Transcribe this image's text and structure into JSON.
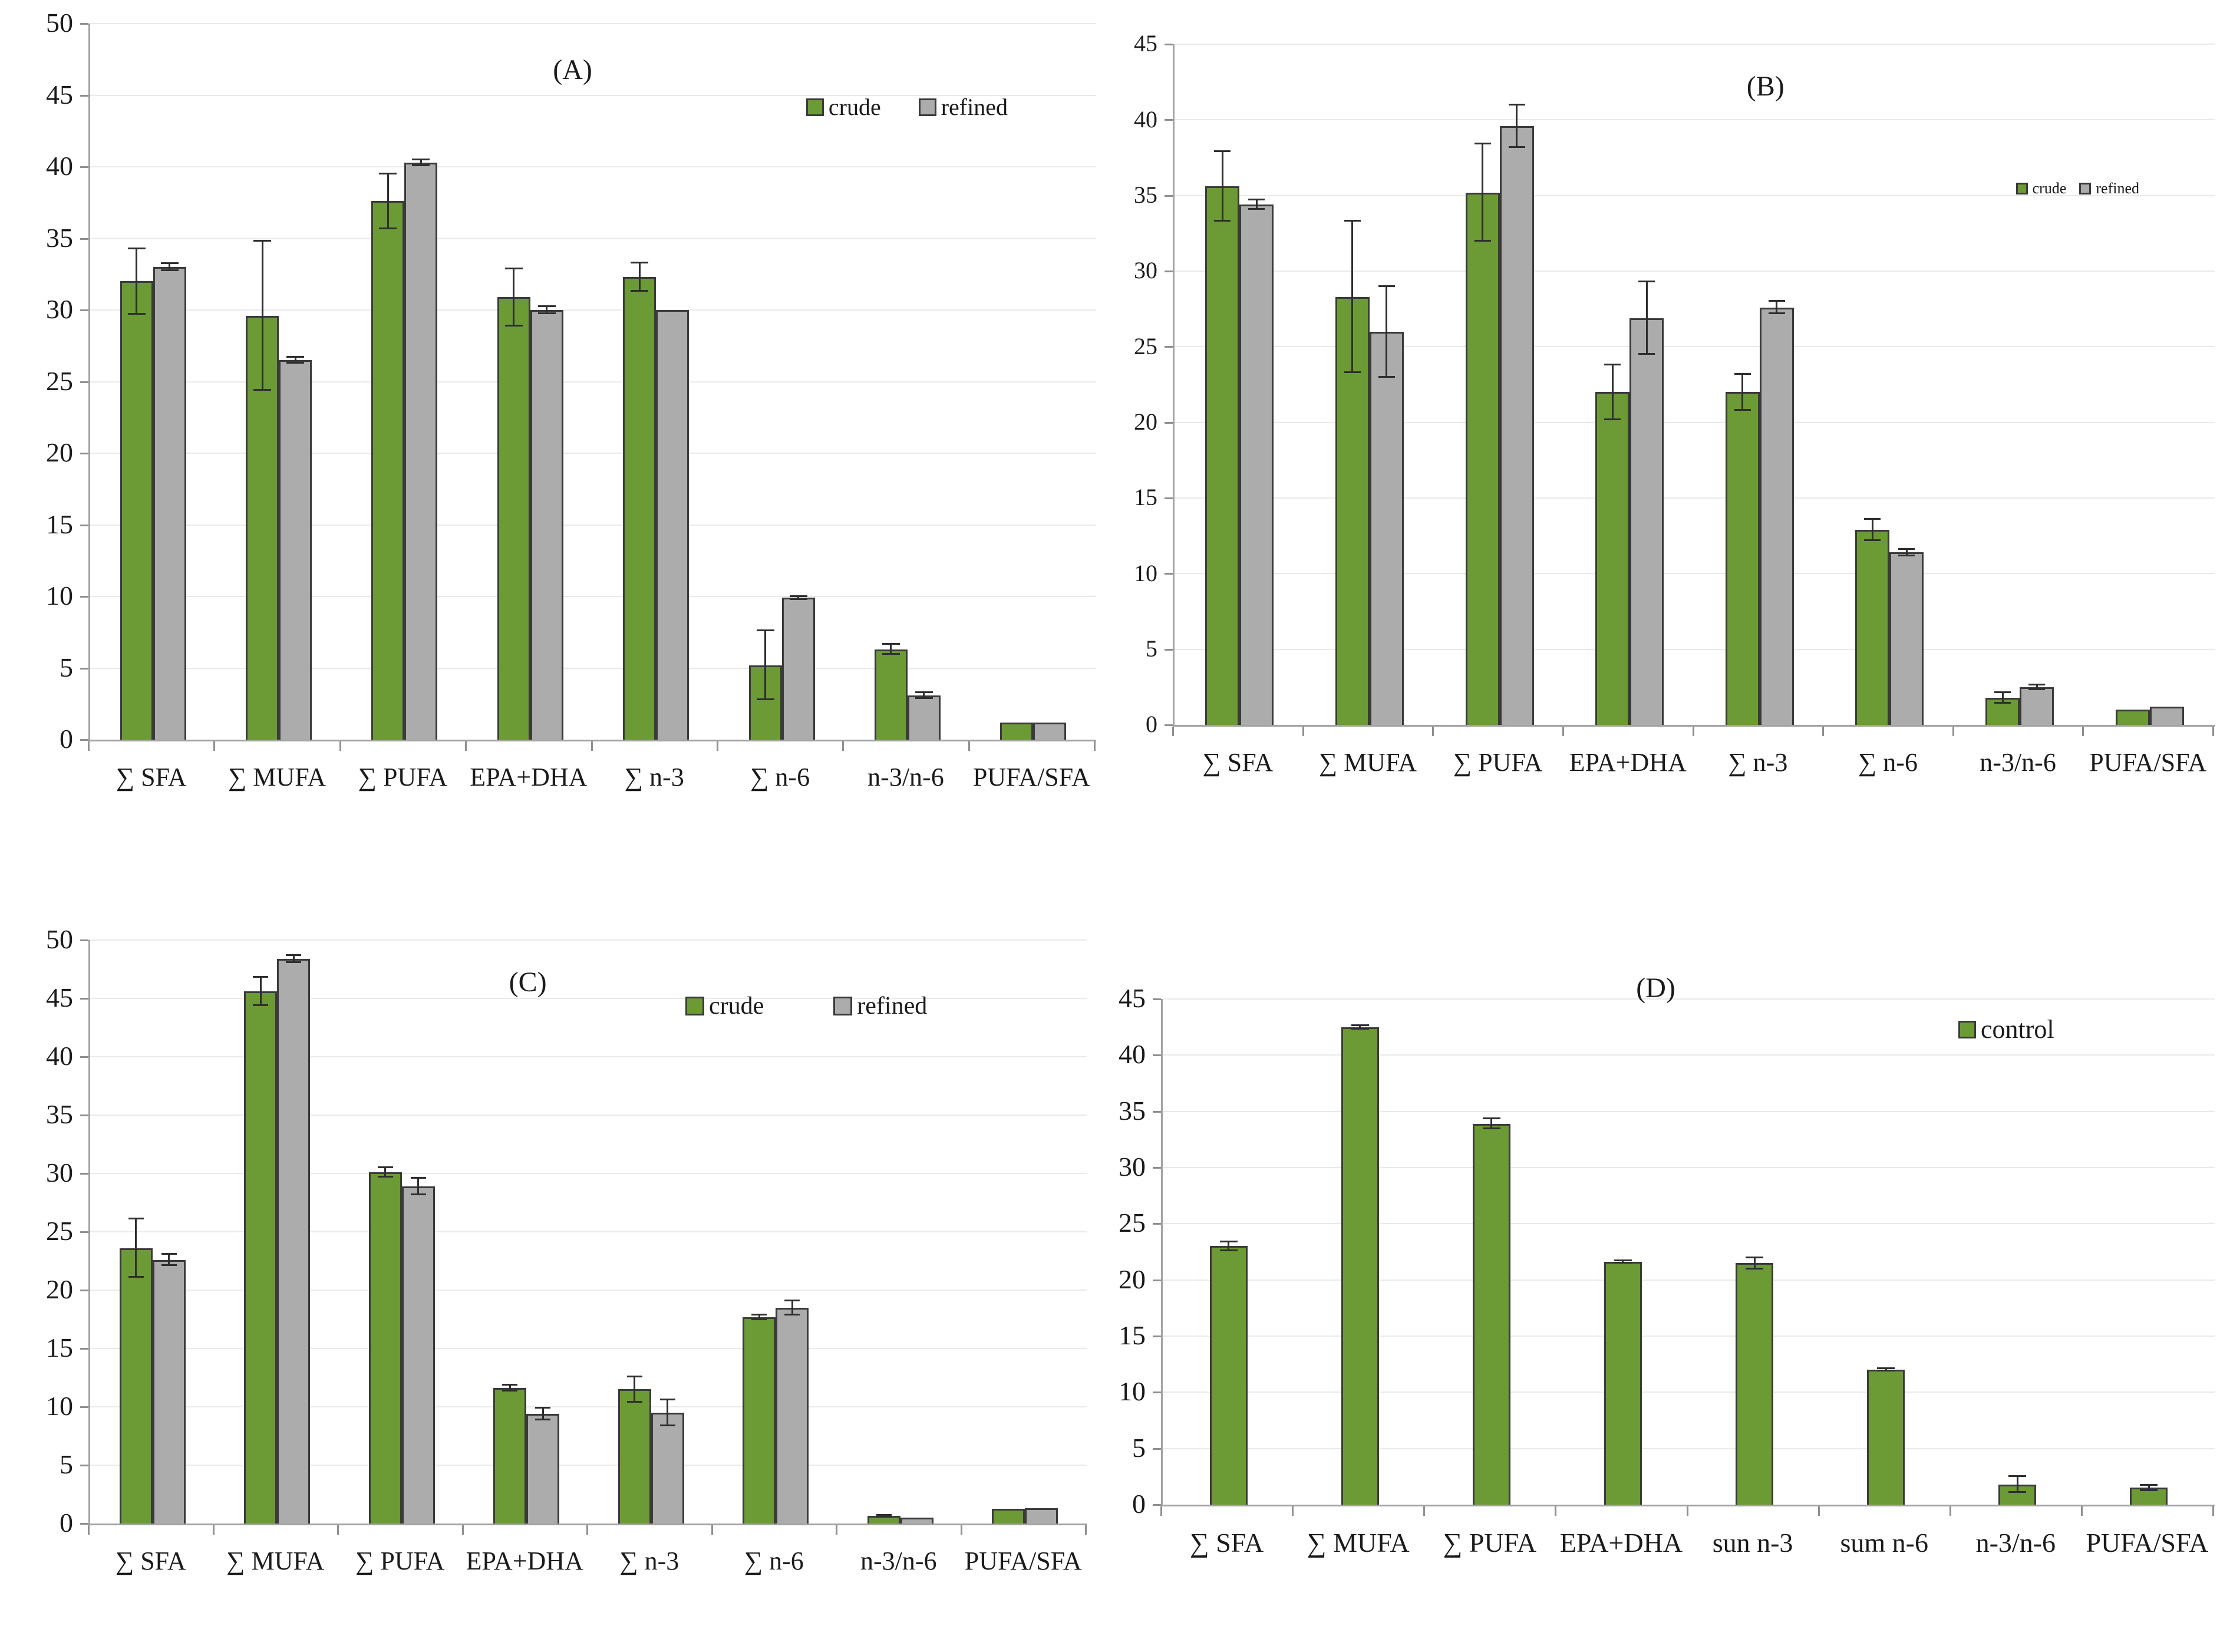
{
  "figure": {
    "background": "#ffffff",
    "series_colors": {
      "crude": "#6c9a34",
      "refined": "#acacac",
      "control": "#6c9a34"
    },
    "bar_border_color": "#3a3a3a",
    "gridline_color": "#eaeaea",
    "axis_color": "#a3a3a3"
  },
  "chart_data": [
    {
      "id": "A",
      "type": "bar",
      "title": "(A)",
      "grid": true,
      "legend_position": "top-right-inside",
      "ylim": [
        0,
        50
      ],
      "ytick_step": 5,
      "ytick_labels": [
        "0",
        "5",
        "10",
        "15",
        "20",
        "25",
        "30",
        "35",
        "40",
        "45",
        "50"
      ],
      "categories": [
        "∑ SFA",
        "∑ MUFA",
        "∑ PUFA",
        "EPA+DHA",
        "∑ n-3",
        "∑ n-6",
        "n-3/n-6",
        "PUFA/SFA"
      ],
      "series": [
        {
          "name": "crude",
          "color": "#6c9a34",
          "values": [
            32.0,
            29.6,
            37.6,
            30.9,
            32.3,
            5.2,
            6.3,
            1.2
          ],
          "errors": [
            2.3,
            5.2,
            1.9,
            2.0,
            1.0,
            2.4,
            0.35,
            0
          ]
        },
        {
          "name": "refined",
          "color": "#acacac",
          "values": [
            33.0,
            26.5,
            40.3,
            30.0,
            30.0,
            9.9,
            3.1,
            1.2
          ],
          "errors": [
            0.25,
            0.2,
            0.2,
            0.25,
            0,
            0.1,
            0.2,
            0
          ]
        }
      ]
    },
    {
      "id": "B",
      "type": "bar",
      "title": "(B)",
      "grid": true,
      "legend_position": "right-inside",
      "ylim": [
        0,
        45
      ],
      "ytick_step": 5,
      "ytick_labels": [
        "0",
        "5",
        "10",
        "15",
        "20",
        "25",
        "30",
        "35",
        "40",
        "45"
      ],
      "categories": [
        "∑ SFA",
        "∑ MUFA",
        "∑ PUFA",
        "EPA+DHA",
        "∑ n-3",
        "∑ n-6",
        "n-3/n-6",
        "PUFA/SFA"
      ],
      "series": [
        {
          "name": "crude",
          "color": "#6c9a34",
          "values": [
            35.6,
            28.3,
            35.2,
            22.0,
            22.0,
            12.9,
            1.8,
            1.0
          ],
          "errors": [
            2.3,
            5.0,
            3.2,
            1.8,
            1.2,
            0.7,
            0.35,
            0
          ]
        },
        {
          "name": "refined",
          "color": "#acacac",
          "values": [
            34.4,
            26.0,
            39.6,
            26.9,
            27.6,
            11.4,
            2.5,
            1.2
          ],
          "errors": [
            0.3,
            3.0,
            1.4,
            2.4,
            0.4,
            0.2,
            0.15,
            0
          ]
        }
      ]
    },
    {
      "id": "C",
      "type": "bar",
      "title": "(C)",
      "grid": true,
      "legend_position": "top-center-inside",
      "ylim": [
        0,
        50
      ],
      "ytick_step": 5,
      "ytick_labels": [
        "0",
        "5",
        "10",
        "15",
        "20",
        "25",
        "30",
        "35",
        "40",
        "45",
        "50"
      ],
      "categories": [
        "∑ SFA",
        "∑ MUFA",
        "∑ PUFA",
        "EPA+DHA",
        "∑ n-3",
        "∑ n-6",
        "n-3/n-6",
        "PUFA/SFA"
      ],
      "series": [
        {
          "name": "crude",
          "color": "#6c9a34",
          "values": [
            23.6,
            45.6,
            30.1,
            11.6,
            11.5,
            17.7,
            0.65,
            1.25
          ],
          "errors": [
            2.5,
            1.2,
            0.4,
            0.25,
            1.1,
            0.2,
            0.08,
            0
          ]
        },
        {
          "name": "refined",
          "color": "#acacac",
          "values": [
            22.6,
            48.4,
            28.9,
            9.4,
            9.5,
            18.5,
            0.5,
            1.3
          ],
          "errors": [
            0.5,
            0.3,
            0.7,
            0.5,
            1.1,
            0.6,
            0,
            0
          ]
        }
      ]
    },
    {
      "id": "D",
      "type": "bar",
      "title": "(D)",
      "grid": true,
      "legend_position": "top-right-inside",
      "ylim": [
        0,
        45
      ],
      "ytick_step": 5,
      "ytick_labels": [
        "0",
        "5",
        "10",
        "15",
        "20",
        "25",
        "30",
        "35",
        "40",
        "45"
      ],
      "categories": [
        "∑ SFA",
        "∑ MUFA",
        "∑ PUFA",
        "EPA+DHA",
        "sun n-3",
        "sum n-6",
        "n-3/n-6",
        "PUFA/SFA"
      ],
      "series": [
        {
          "name": "control",
          "color": "#6c9a34",
          "values": [
            23.0,
            42.5,
            33.9,
            21.6,
            21.5,
            12.0,
            1.8,
            1.5
          ],
          "errors": [
            0.4,
            0.15,
            0.45,
            0.1,
            0.5,
            0.1,
            0.7,
            0.25
          ]
        }
      ]
    }
  ]
}
